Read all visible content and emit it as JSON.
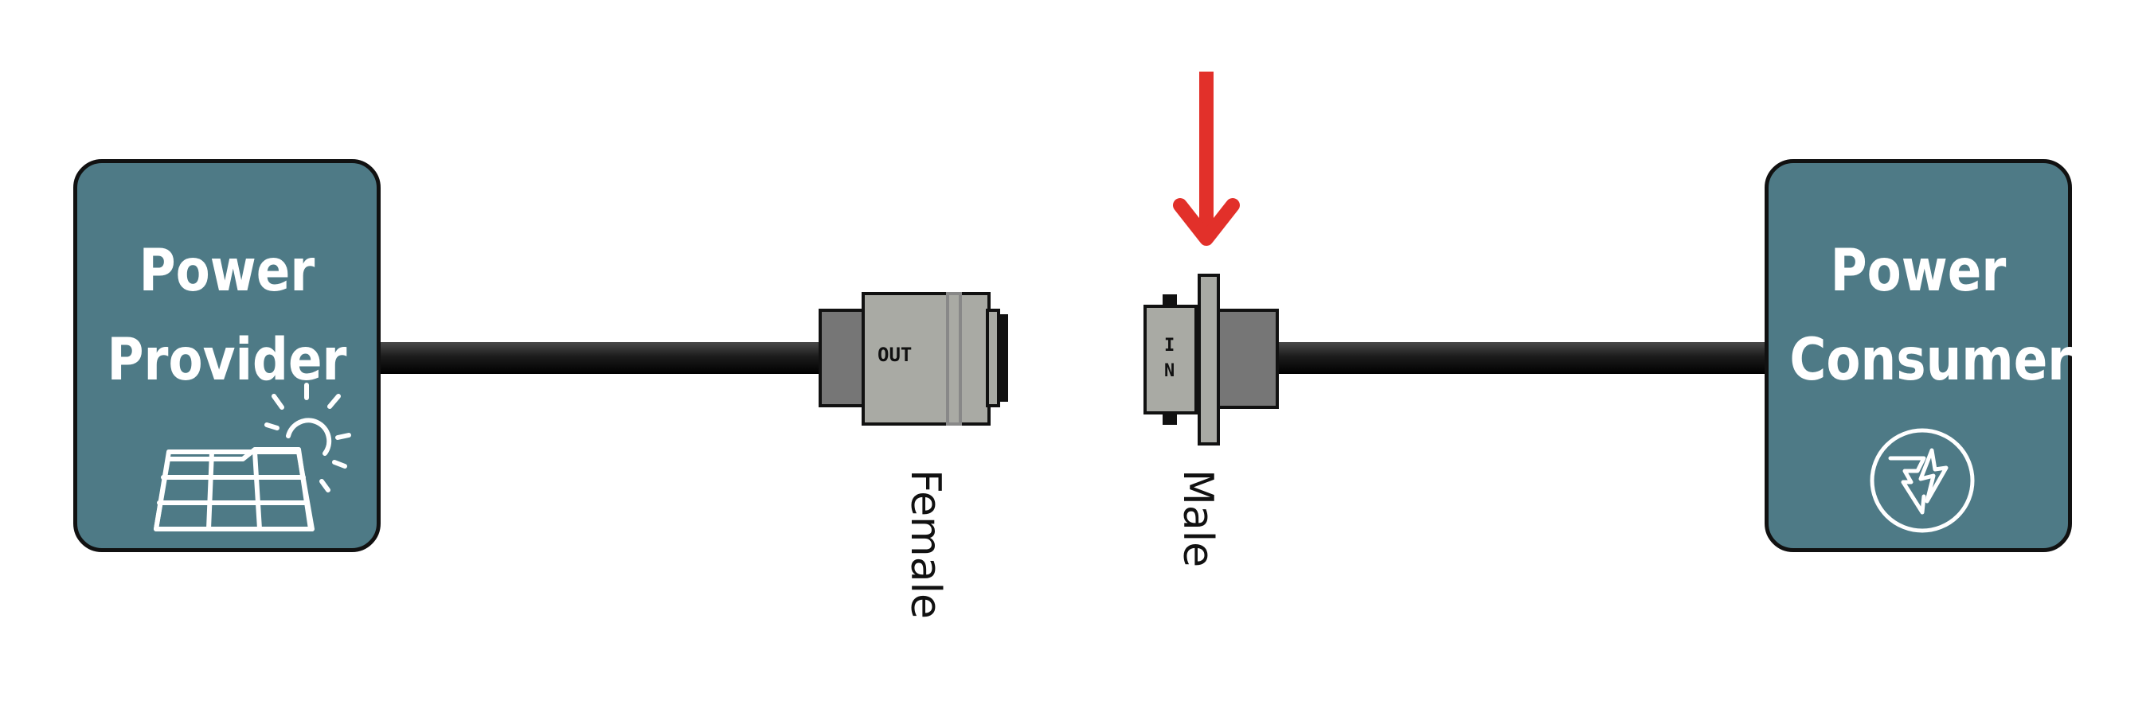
{
  "provider": {
    "title": "Power\nProvider",
    "icon": "solar-panel-icon"
  },
  "consumer": {
    "title": "Power\nConsumer",
    "icon": "ev-charge-icon"
  },
  "connector_out": {
    "text": "OUT",
    "label": "Female"
  },
  "connector_in": {
    "text_line1": "I",
    "text_line2": "N",
    "label": "Male"
  },
  "indicator": {
    "icon": "down-arrow-icon"
  },
  "colors": {
    "box": "#4e7a86",
    "outline": "#111111",
    "plug_light": "#a9aaa4",
    "plug_dark": "#767676",
    "arrow": "#e2302a",
    "cable": "#1a1a1a"
  }
}
